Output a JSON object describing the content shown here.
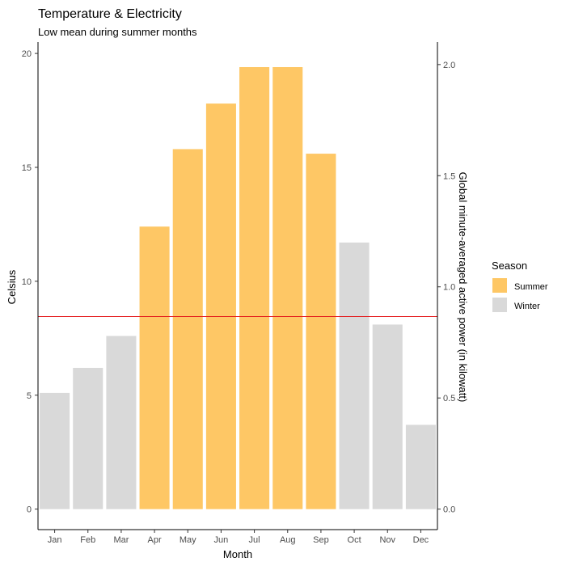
{
  "chart_data": {
    "type": "bar",
    "title": "Temperature & Electricity",
    "subtitle": "Low mean during summer months",
    "xlabel": "Month",
    "ylabel": "Celsius",
    "ylabel_right": "Global minute-averaged active power (in kilowatt)",
    "categories": [
      "Jan",
      "Feb",
      "Mar",
      "Apr",
      "May",
      "Jun",
      "Jul",
      "Aug",
      "Sep",
      "Oct",
      "Nov",
      "Dec"
    ],
    "values": [
      5.1,
      6.2,
      7.6,
      12.4,
      15.8,
      17.8,
      19.4,
      19.4,
      15.6,
      11.7,
      8.1,
      3.7
    ],
    "season": [
      "Winter",
      "Winter",
      "Winter",
      "Summer",
      "Summer",
      "Summer",
      "Summer",
      "Summer",
      "Summer",
      "Winter",
      "Winter",
      "Winter"
    ],
    "ylim": [
      -0.9,
      20.5
    ],
    "y_ticks": [
      0,
      5,
      10,
      15,
      20
    ],
    "y2_ticks": [
      0.0,
      0.5,
      1.0,
      1.5,
      2.0
    ],
    "y2_tick_labels": [
      "0.0",
      "0.5",
      "1.0",
      "1.5",
      "2.0"
    ],
    "y2_scale": 0.1025,
    "reference_line": {
      "y": 8.45,
      "color": "#e41a1c"
    },
    "legend": {
      "title": "Season",
      "position": "right",
      "entries": [
        {
          "label": "Summer",
          "color": "#fec765"
        },
        {
          "label": "Winter",
          "color": "#d9d9d9"
        }
      ]
    },
    "grid": false
  }
}
